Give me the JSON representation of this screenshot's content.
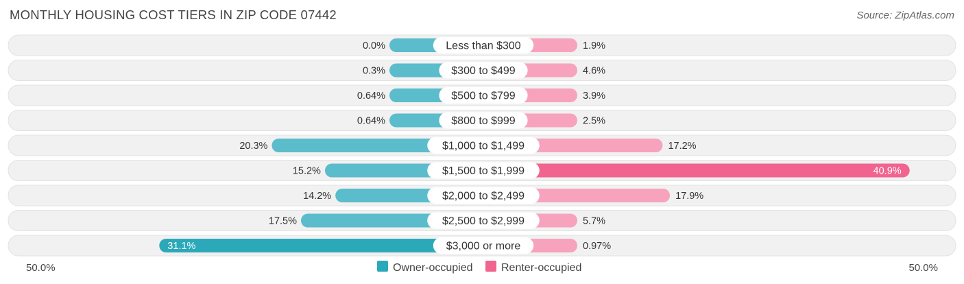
{
  "title": "MONTHLY HOUSING COST TIERS IN ZIP CODE 07442",
  "source": "Source: ZipAtlas.com",
  "colors": {
    "owner": "#5bbccb",
    "owner_strong": "#2ba9b9",
    "renter": "#f7a3bd",
    "renter_strong": "#f0648f",
    "row_bg": "#f1f1f1",
    "row_border": "#e2e2e2"
  },
  "chart_data": {
    "type": "bar",
    "orientation": "horizontal-diverging",
    "categories": [
      "Less than $300",
      "$300 to $499",
      "$500 to $799",
      "$800 to $999",
      "$1,000 to $1,499",
      "$1,500 to $1,999",
      "$2,000 to $2,499",
      "$2,500 to $2,999",
      "$3,000 or more"
    ],
    "series": [
      {
        "name": "Owner-occupied",
        "values": [
          0.0,
          0.3,
          0.64,
          0.64,
          20.3,
          15.2,
          14.2,
          17.5,
          31.1
        ],
        "labels": [
          "0.0%",
          "0.3%",
          "0.64%",
          "0.64%",
          "20.3%",
          "15.2%",
          "14.2%",
          "17.5%",
          "31.1%"
        ]
      },
      {
        "name": "Renter-occupied",
        "values": [
          1.9,
          4.6,
          3.9,
          2.5,
          17.2,
          40.9,
          17.9,
          5.7,
          0.97
        ],
        "labels": [
          "1.9%",
          "4.6%",
          "3.9%",
          "2.5%",
          "17.2%",
          "40.9%",
          "17.9%",
          "5.7%",
          "0.97%"
        ]
      }
    ],
    "axis_left_label": "50.0%",
    "axis_right_label": "50.0%",
    "xlim": [
      -50,
      50
    ],
    "legend_position": "bottom-center"
  }
}
